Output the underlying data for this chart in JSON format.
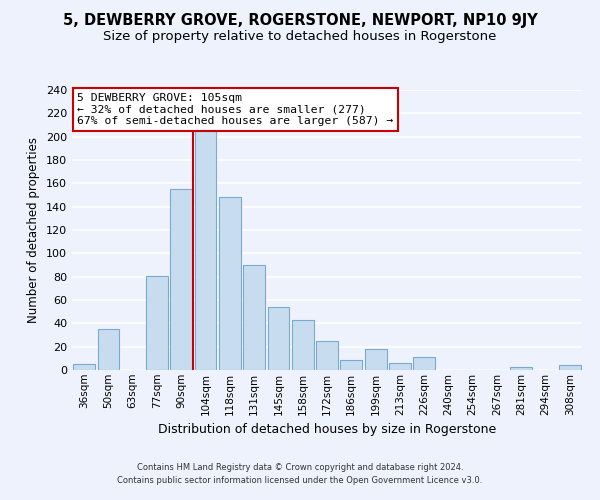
{
  "title": "5, DEWBERRY GROVE, ROGERSTONE, NEWPORT, NP10 9JY",
  "subtitle": "Size of property relative to detached houses in Rogerstone",
  "xlabel": "Distribution of detached houses by size in Rogerstone",
  "ylabel": "Number of detached properties",
  "footer_line1": "Contains HM Land Registry data © Crown copyright and database right 2024.",
  "footer_line2": "Contains public sector information licensed under the Open Government Licence v3.0.",
  "bar_labels": [
    "36sqm",
    "50sqm",
    "63sqm",
    "77sqm",
    "90sqm",
    "104sqm",
    "118sqm",
    "131sqm",
    "145sqm",
    "158sqm",
    "172sqm",
    "186sqm",
    "199sqm",
    "213sqm",
    "226sqm",
    "240sqm",
    "254sqm",
    "267sqm",
    "281sqm",
    "294sqm",
    "308sqm"
  ],
  "bar_values": [
    5,
    35,
    0,
    81,
    155,
    205,
    148,
    90,
    54,
    43,
    25,
    9,
    18,
    6,
    11,
    0,
    0,
    0,
    3,
    0,
    4
  ],
  "bar_color": "#c8dcf0",
  "bar_edge_color": "#7aaace",
  "highlight_index": 5,
  "highlight_line_color": "#cc0000",
  "annotation_text_line1": "5 DEWBERRY GROVE: 105sqm",
  "annotation_text_line2": "← 32% of detached houses are smaller (277)",
  "annotation_text_line3": "67% of semi-detached houses are larger (587) →",
  "annotation_box_facecolor": "#ffffff",
  "annotation_box_edgecolor": "#cc0000",
  "ylim": [
    0,
    240
  ],
  "yticks": [
    0,
    20,
    40,
    60,
    80,
    100,
    120,
    140,
    160,
    180,
    200,
    220,
    240
  ],
  "background_color": "#eef2fc",
  "grid_color": "#ffffff",
  "title_fontsize": 10.5,
  "subtitle_fontsize": 9.5,
  "ylabel_fontsize": 8.5,
  "xlabel_fontsize": 9,
  "tick_fontsize": 8,
  "xtick_fontsize": 7.5
}
